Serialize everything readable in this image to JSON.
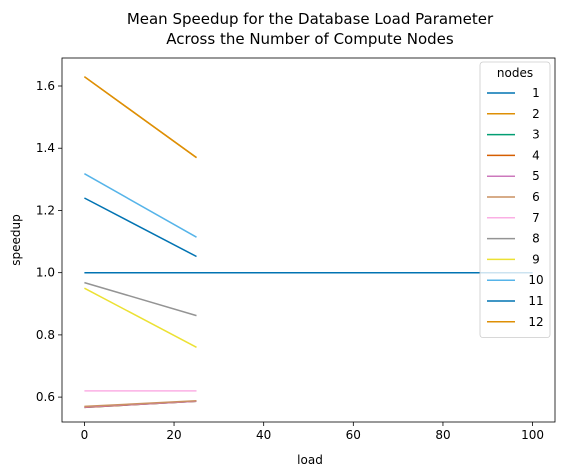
{
  "chart_data": {
    "type": "line",
    "title_line1": "Mean Speedup for the Database Load Parameter",
    "title_line2": "Across the Number of Compute Nodes",
    "xlabel": "load",
    "ylabel": "speedup",
    "xlim": [
      -5,
      105
    ],
    "ylim": [
      0.52,
      1.69
    ],
    "xticks": [
      0,
      20,
      40,
      60,
      80,
      100
    ],
    "yticks": [
      0.6,
      0.8,
      1.0,
      1.2,
      1.4,
      1.6
    ],
    "xtick_labels": [
      "0",
      "20",
      "40",
      "60",
      "80",
      "100"
    ],
    "ytick_labels": [
      "0.6",
      "0.8",
      "1.0",
      "1.2",
      "1.4",
      "1.6"
    ],
    "legend": {
      "title": "nodes",
      "position": "upper right"
    },
    "grid": false,
    "series": [
      {
        "name": "1",
        "color": "#0173b2",
        "x": [
          0,
          25,
          100
        ],
        "y": [
          1.0,
          1.0,
          1.0
        ]
      },
      {
        "name": "2",
        "color": "#de8f05",
        "x": [
          0,
          25
        ],
        "y": [
          1.63,
          1.37
        ]
      },
      {
        "name": "3",
        "color": "#029e73",
        "x": [
          0,
          25
        ],
        "y": [
          0.567,
          0.587
        ]
      },
      {
        "name": "4",
        "color": "#d55e00",
        "x": [
          0,
          25
        ],
        "y": [
          0.567,
          0.587
        ]
      },
      {
        "name": "5",
        "color": "#cc78bc",
        "x": [
          0,
          25
        ],
        "y": [
          0.568,
          0.587
        ]
      },
      {
        "name": "6",
        "color": "#ca9161",
        "x": [
          0,
          25
        ],
        "y": [
          0.57,
          0.588
        ]
      },
      {
        "name": "7",
        "color": "#fbafe4",
        "x": [
          0,
          25
        ],
        "y": [
          0.62,
          0.62
        ]
      },
      {
        "name": "8",
        "color": "#949494",
        "x": [
          0,
          25
        ],
        "y": [
          0.968,
          0.862
        ]
      },
      {
        "name": "9",
        "color": "#ece133",
        "x": [
          0,
          25
        ],
        "y": [
          0.95,
          0.76
        ]
      },
      {
        "name": "10",
        "color": "#56b4e9",
        "x": [
          0,
          25
        ],
        "y": [
          1.318,
          1.114
        ]
      },
      {
        "name": "11",
        "color": "#0173b2",
        "x": [
          0,
          25
        ],
        "y": [
          1.24,
          1.052
        ]
      },
      {
        "name": "12",
        "color": "#de8f05",
        "x": [
          0,
          25
        ],
        "y": [
          1.63,
          1.37
        ]
      }
    ]
  }
}
